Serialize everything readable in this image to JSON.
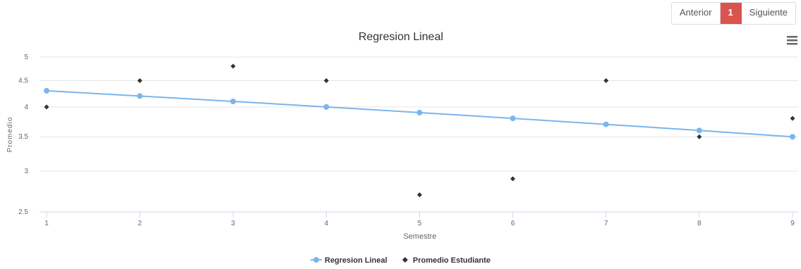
{
  "pagination": {
    "prev_label": "Anterior",
    "current": "1",
    "next_label": "Siguiente"
  },
  "icons": {
    "menu": "hamburger-menu-icon"
  },
  "colors": {
    "regression": "#7cb5ec",
    "student": "#333333",
    "active_page": "#d9534f"
  },
  "chart_data": {
    "type": "line",
    "title": "Regresion Lineal",
    "xlabel": "Semestre",
    "ylabel": "Promedio",
    "x": [
      1,
      2,
      3,
      4,
      5,
      6,
      7,
      8,
      9
    ],
    "xlim": [
      1,
      9
    ],
    "ylim": [
      2.5,
      5
    ],
    "yticks": [
      "2.5",
      "3",
      "3.5",
      "4",
      "4.5",
      "5"
    ],
    "xticks": [
      "1",
      "2",
      "3",
      "4",
      "5",
      "6",
      "7",
      "8",
      "9"
    ],
    "grid": true,
    "legend_position": "bottom-center",
    "series": [
      {
        "name": "Regresion Lineal",
        "kind": "line",
        "marker": "circle",
        "values": [
          4.3,
          4.2,
          4.1,
          4.0,
          3.9,
          3.8,
          3.7,
          3.6,
          3.5
        ]
      },
      {
        "name": "Promedio Estudiante",
        "kind": "scatter",
        "marker": "diamond",
        "values": [
          4.0,
          4.5,
          4.8,
          4.5,
          2.7,
          2.9,
          4.5,
          3.5,
          3.8
        ]
      }
    ]
  }
}
